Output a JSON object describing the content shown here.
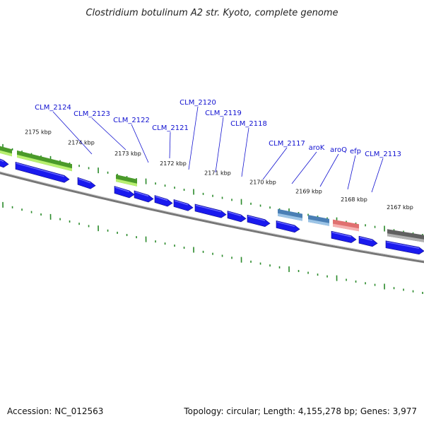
{
  "title": "Clostridium botulinum A2 str. Kyoto, complete genome",
  "footer": {
    "accession": "Accession: NC_012563",
    "summary": "Topology: circular; Length: 4,155,278 bp; Genes: 3,977"
  },
  "colors": {
    "cds": "#1a1aee",
    "gene_green": "#4a9a2a",
    "gene_lightgreen": "#b8f070",
    "gene_blue": "#4a7fb5",
    "gene_red": "#e07070",
    "gene_grey": "#606060",
    "tick": "#2a8a2a",
    "backbone": "#777777"
  },
  "kbp_labels": [
    "2175 kbp",
    "2174 kbp",
    "2173 kbp",
    "2172 kbp",
    "2171 kbp",
    "2170 kbp",
    "2169 kbp",
    "2168 kbp",
    "2167 kbp"
  ],
  "gene_labels": [
    "CLM_2124",
    "CLM_2123",
    "CLM_2122",
    "CLM_2121",
    "CLM_2120",
    "CLM_2119",
    "CLM_2118",
    "CLM_2117",
    "aroK",
    "aroQ",
    "efp",
    "CLM_2113"
  ]
}
